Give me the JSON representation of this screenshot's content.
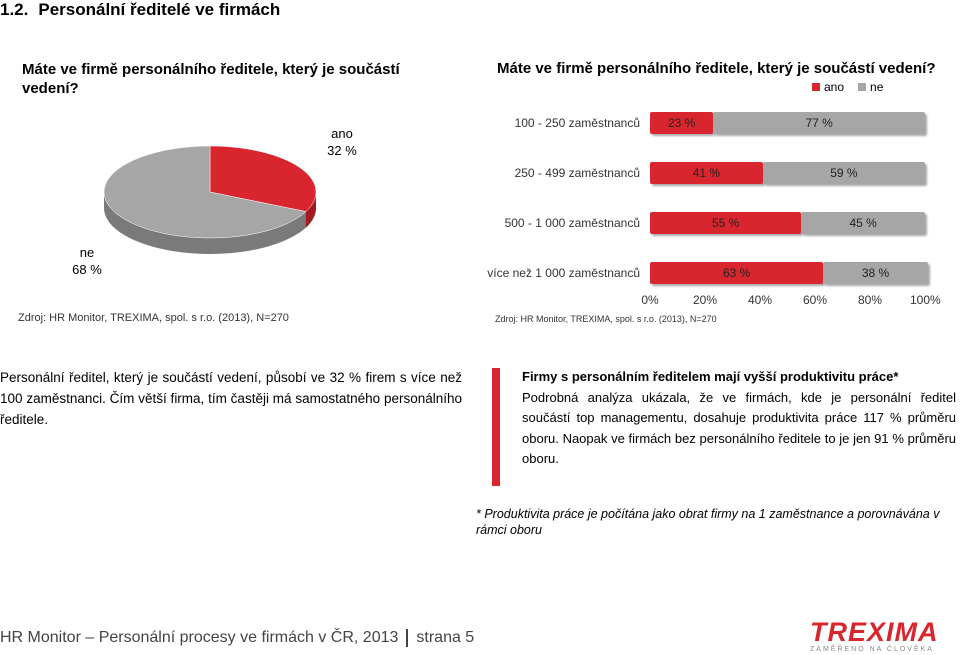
{
  "section": {
    "number": "1.2.",
    "title": "Personální ředitelé ve firmách"
  },
  "left_panel": {
    "question": "Máte ve firmě personálního ředitele, který je součástí vedení?",
    "source": "Zdroj: HR Monitor, TREXIMA, spol. s r.o.  (2013), N=270"
  },
  "right_panel": {
    "question": "Máte ve firmě personálního ředitele, který je součástí vedení?",
    "source": "Zdroj: HR Monitor, TREXIMA, spol. s r.o.  (2013), N=270"
  },
  "chart_data": [
    {
      "type": "pie",
      "slices": [
        {
          "label": "ano",
          "value_label": "32 %",
          "value": 32,
          "color": "#d9262e"
        },
        {
          "label": "ne",
          "value_label": "68 %",
          "value": 68,
          "color": "#a6a6a6"
        }
      ]
    },
    {
      "type": "bar",
      "orientation": "horizontal-stacked-100",
      "categories": [
        "100 - 250 zaměstnanců",
        "250 - 499 zaměstnanců",
        "500 - 1 000 zaměstnanců",
        "více než 1 000 zaměstnanců"
      ],
      "series": [
        {
          "name": "ano",
          "color": "#d9262e",
          "values": [
            23,
            41,
            55,
            63
          ],
          "labels": [
            "23 %",
            "41 %",
            "55 %",
            "63 %"
          ]
        },
        {
          "name": "ne",
          "color": "#a6a6a6",
          "values": [
            77,
            59,
            45,
            38
          ],
          "labels": [
            "77 %",
            "59 %",
            "45 %",
            "38 %"
          ]
        }
      ],
      "xticks": [
        "0%",
        "20%",
        "40%",
        "60%",
        "80%",
        "100%"
      ],
      "xlim": [
        0,
        100
      ],
      "legend": "top-right"
    }
  ],
  "text": {
    "left_paragraph": "Personální ředitel, který je součástí vedení, působí ve 32 % firem s více než 100 zaměstnanci. Čím větší firma, tím častěji má samostatného personálního ředitele.",
    "right_lead": "Firmy s personálním ředitelem mají vyšší produktivitu práce*",
    "right_paragraph": "Podrobná analýza ukázala, že ve firmách, kde je personální ředitel součástí top managementu, dosahuje produktivita práce 117 % průměru oboru. Naopak ve firmách bez personálního ředitele to je jen 91 % průměru oboru.",
    "footnote": "* Produktivita práce je počítána jako obrat firmy na 1 zaměstnance a porovnávána v rámci oboru"
  },
  "footer": {
    "report": "HR Monitor – Personální procesy ve firmách v ČR, 2013",
    "page": "strana 5",
    "logo": "TREXIMA",
    "logo_tagline": "ZAMĚŘENO NA ČLOVĚKA"
  }
}
